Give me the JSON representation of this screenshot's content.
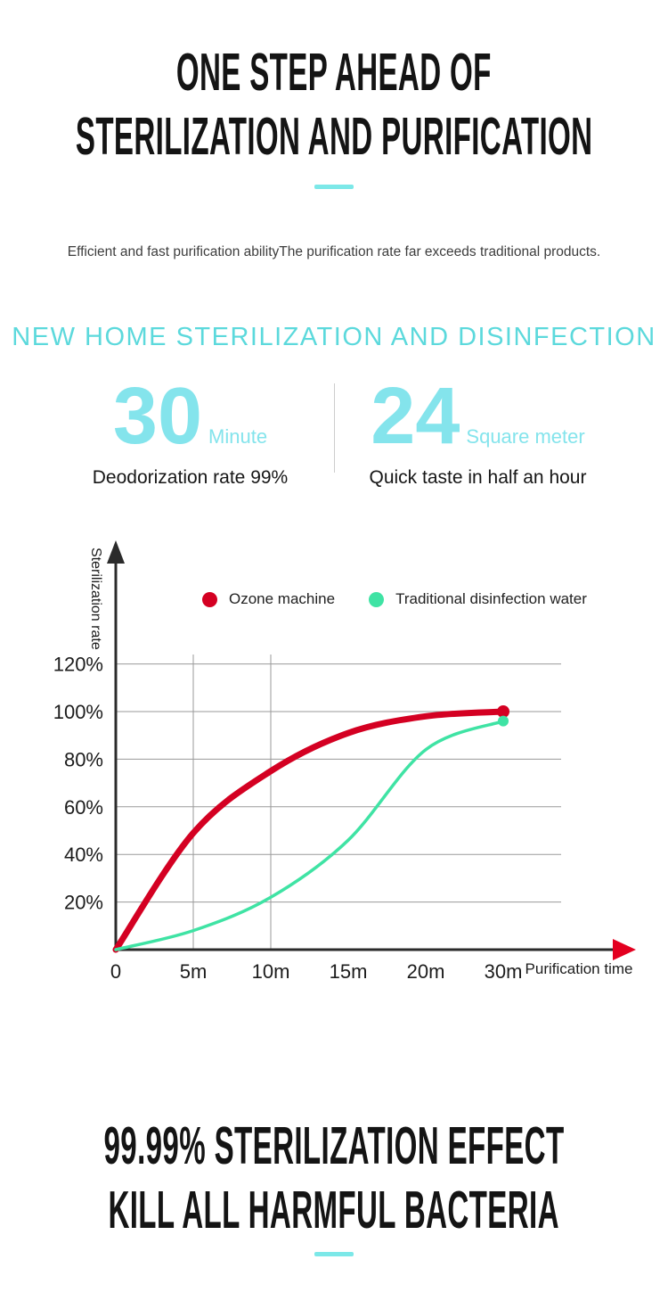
{
  "colors": {
    "accent_cyan": "#7ce8e8",
    "heading_cyan": "#5cd9dc",
    "stat_cyan": "#84e4ec",
    "ozone_red": "#d40022",
    "disinfect_green": "#3fe3a4"
  },
  "hero": {
    "title_line1": "ONE STEP AHEAD OF",
    "title_line2": "STERILIZATION AND PURIFICATION",
    "subtitle": "Efficient and fast purification abilityThe purification rate far exceeds traditional products."
  },
  "section": {
    "heading": "NEW HOME STERILIZATION AND DISINFECTION"
  },
  "stats": [
    {
      "value": "30",
      "unit": "Minute",
      "caption": "Deodorization rate 99%"
    },
    {
      "value": "24",
      "unit": "Square meter",
      "caption": "Quick taste in half an hour"
    }
  ],
  "chart_data": {
    "type": "line",
    "title": "",
    "xlabel": "Purification time",
    "ylabel": "Sterilization rate",
    "x_ticks": [
      "0",
      "5m",
      "10m",
      "15m",
      "20m",
      "30m"
    ],
    "y_ticks": [
      "20%",
      "40%",
      "60%",
      "80%",
      "100%",
      "120%"
    ],
    "ylim": [
      0,
      130
    ],
    "grid": "horizontal lines at every y tick; vertical lines at 5m and 10m only",
    "legend_position": "top",
    "series": [
      {
        "name": "Ozone machine",
        "color": "#d40022",
        "values": [
          0,
          49,
          75,
          91,
          98,
          100
        ]
      },
      {
        "name": "Traditional disinfection water",
        "color": "#3fe3a4",
        "values": [
          0,
          8,
          22,
          46,
          84,
          96
        ]
      }
    ]
  },
  "footer": {
    "title_line1": "99.99% STERILIZATION EFFECT",
    "title_line2": "KILL ALL HARMFUL BACTERIA"
  }
}
